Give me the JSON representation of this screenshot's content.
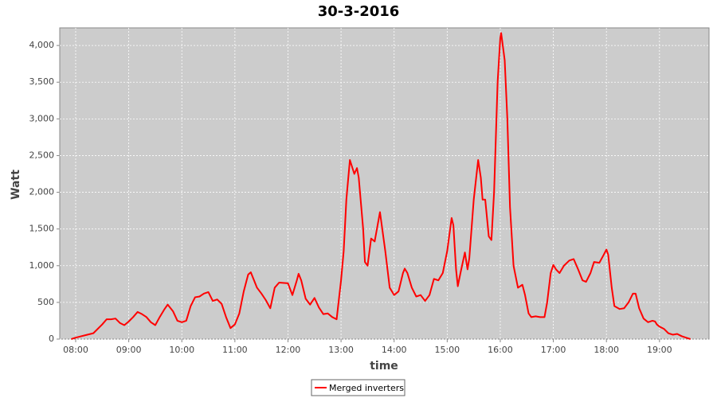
{
  "chart_data": {
    "type": "line",
    "title": "30-3-2016",
    "x_label": "time",
    "y_label": "Watt",
    "x": [
      "07:55",
      "08:00",
      "08:10",
      "08:20",
      "08:30",
      "08:35",
      "08:40",
      "08:45",
      "08:50",
      "08:55",
      "09:00",
      "09:05",
      "09:10",
      "09:15",
      "09:20",
      "09:25",
      "09:30",
      "09:35",
      "09:40",
      "09:44",
      "09:50",
      "09:55",
      "10:00",
      "10:05",
      "10:10",
      "10:15",
      "10:20",
      "10:25",
      "10:30",
      "10:35",
      "10:40",
      "10:45",
      "10:50",
      "10:55",
      "11:00",
      "11:05",
      "11:10",
      "11:15",
      "11:18",
      "11:25",
      "11:30",
      "11:35",
      "11:40",
      "11:45",
      "11:50",
      "12:00",
      "12:05",
      "12:10",
      "12:12",
      "12:15",
      "12:20",
      "12:25",
      "12:30",
      "12:35",
      "12:40",
      "12:45",
      "12:50",
      "12:55",
      "13:00",
      "13:03",
      "13:06",
      "13:10",
      "13:15",
      "13:18",
      "13:20",
      "13:25",
      "13:27",
      "13:30",
      "13:34",
      "13:38",
      "13:44",
      "13:50",
      "13:55",
      "14:00",
      "14:05",
      "14:10",
      "14:12",
      "14:15",
      "14:20",
      "14:25",
      "14:30",
      "14:35",
      "14:40",
      "14:45",
      "14:50",
      "14:55",
      "15:00",
      "15:05",
      "15:07",
      "15:10",
      "15:12",
      "15:15",
      "15:20",
      "15:23",
      "15:25",
      "15:30",
      "15:35",
      "15:38",
      "15:40",
      "15:43",
      "15:47",
      "15:50",
      "15:53",
      "15:57",
      "16:00",
      "16:01",
      "16:05",
      "16:08",
      "16:11",
      "16:15",
      "16:20",
      "16:25",
      "16:28",
      "16:32",
      "16:35",
      "16:40",
      "16:45",
      "16:50",
      "16:53",
      "16:57",
      "17:00",
      "17:03",
      "17:07",
      "17:12",
      "17:18",
      "17:23",
      "17:28",
      "17:33",
      "17:37",
      "17:42",
      "17:46",
      "17:52",
      "17:57",
      "18:00",
      "18:02",
      "18:06",
      "18:09",
      "18:15",
      "18:20",
      "18:25",
      "18:30",
      "18:33",
      "18:37",
      "18:42",
      "18:47",
      "18:52",
      "18:55",
      "18:57",
      "19:00",
      "19:05",
      "19:10",
      "19:15",
      "19:20",
      "19:25",
      "19:30",
      "19:35"
    ],
    "series": [
      {
        "name": "Merged inverters",
        "color": "#ff0000",
        "values": [
          0,
          20,
          50,
          80,
          200,
          270,
          270,
          280,
          220,
          190,
          240,
          300,
          370,
          340,
          300,
          230,
          190,
          300,
          400,
          470,
          380,
          250,
          230,
          250,
          450,
          570,
          580,
          620,
          640,
          520,
          540,
          480,
          300,
          150,
          200,
          350,
          650,
          880,
          910,
          700,
          620,
          530,
          420,
          700,
          770,
          760,
          600,
          800,
          890,
          800,
          550,
          470,
          560,
          430,
          340,
          350,
          300,
          270,
          800,
          1200,
          1900,
          2440,
          2250,
          2330,
          2200,
          1500,
          1050,
          1000,
          1370,
          1330,
          1730,
          1200,
          700,
          600,
          650,
          900,
          960,
          900,
          700,
          580,
          600,
          520,
          600,
          820,
          800,
          900,
          1200,
          1650,
          1550,
          950,
          720,
          900,
          1180,
          950,
          1100,
          1900,
          2440,
          2200,
          1900,
          1900,
          1400,
          1350,
          2000,
          3500,
          4100,
          4170,
          3800,
          3000,
          1800,
          1000,
          700,
          740,
          600,
          350,
          300,
          310,
          300,
          300,
          500,
          900,
          1010,
          950,
          900,
          1000,
          1070,
          1090,
          950,
          800,
          780,
          900,
          1050,
          1040,
          1150,
          1220,
          1150,
          700,
          450,
          410,
          420,
          500,
          620,
          620,
          420,
          280,
          230,
          250,
          240,
          200,
          170,
          140,
          80,
          60,
          70,
          40,
          20,
          0
        ]
      }
    ],
    "xlim": [
      "07:42",
      "19:56"
    ],
    "xticks": [
      "08:00",
      "09:00",
      "10:00",
      "11:00",
      "12:00",
      "13:00",
      "14:00",
      "15:00",
      "16:00",
      "17:00",
      "18:00",
      "19:00"
    ],
    "ylim": [
      0,
      4240
    ],
    "yticks": [
      0,
      500,
      {
        "value": 1000,
        "label": "1,000"
      },
      {
        "value": 1500,
        "label": "1,500"
      },
      {
        "value": 2000,
        "label": "2,000"
      },
      {
        "value": 2500,
        "label": "2,500"
      },
      {
        "value": 3000,
        "label": "3,000"
      },
      {
        "value": 3500,
        "label": "3,500"
      },
      {
        "value": 4000,
        "label": "4,000"
      }
    ],
    "grid": true,
    "legend": "bottom"
  }
}
